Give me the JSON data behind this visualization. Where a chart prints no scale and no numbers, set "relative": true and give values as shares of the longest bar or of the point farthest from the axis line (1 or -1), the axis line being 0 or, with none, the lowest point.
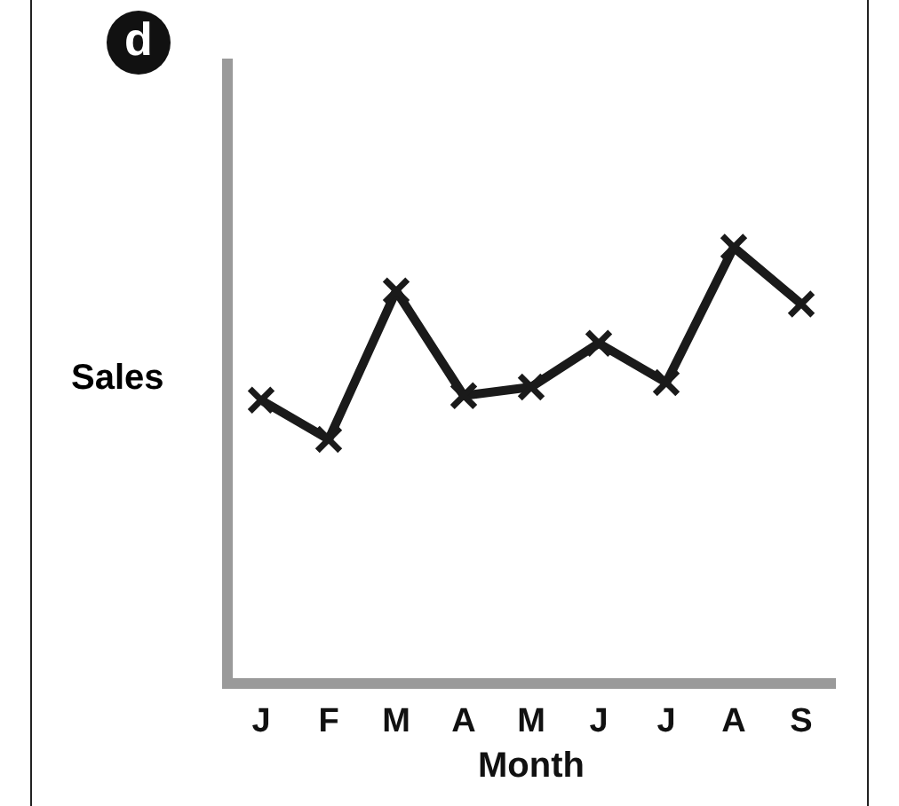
{
  "chart_data": {
    "type": "line",
    "annotations": [
      "d"
    ],
    "xlabel": "Month",
    "ylabel": "Sales",
    "relative": true,
    "marker": "cross",
    "tick_labels": "x",
    "categories": [
      "J",
      "F",
      "M",
      "A",
      "M",
      "J",
      "J",
      "A",
      "S"
    ],
    "series": [
      {
        "color": "#1a1a1a",
        "values": [
          0.65,
          0.56,
          0.9,
          0.66,
          0.68,
          0.78,
          0.69,
          1,
          0.87
        ]
      }
    ]
  }
}
